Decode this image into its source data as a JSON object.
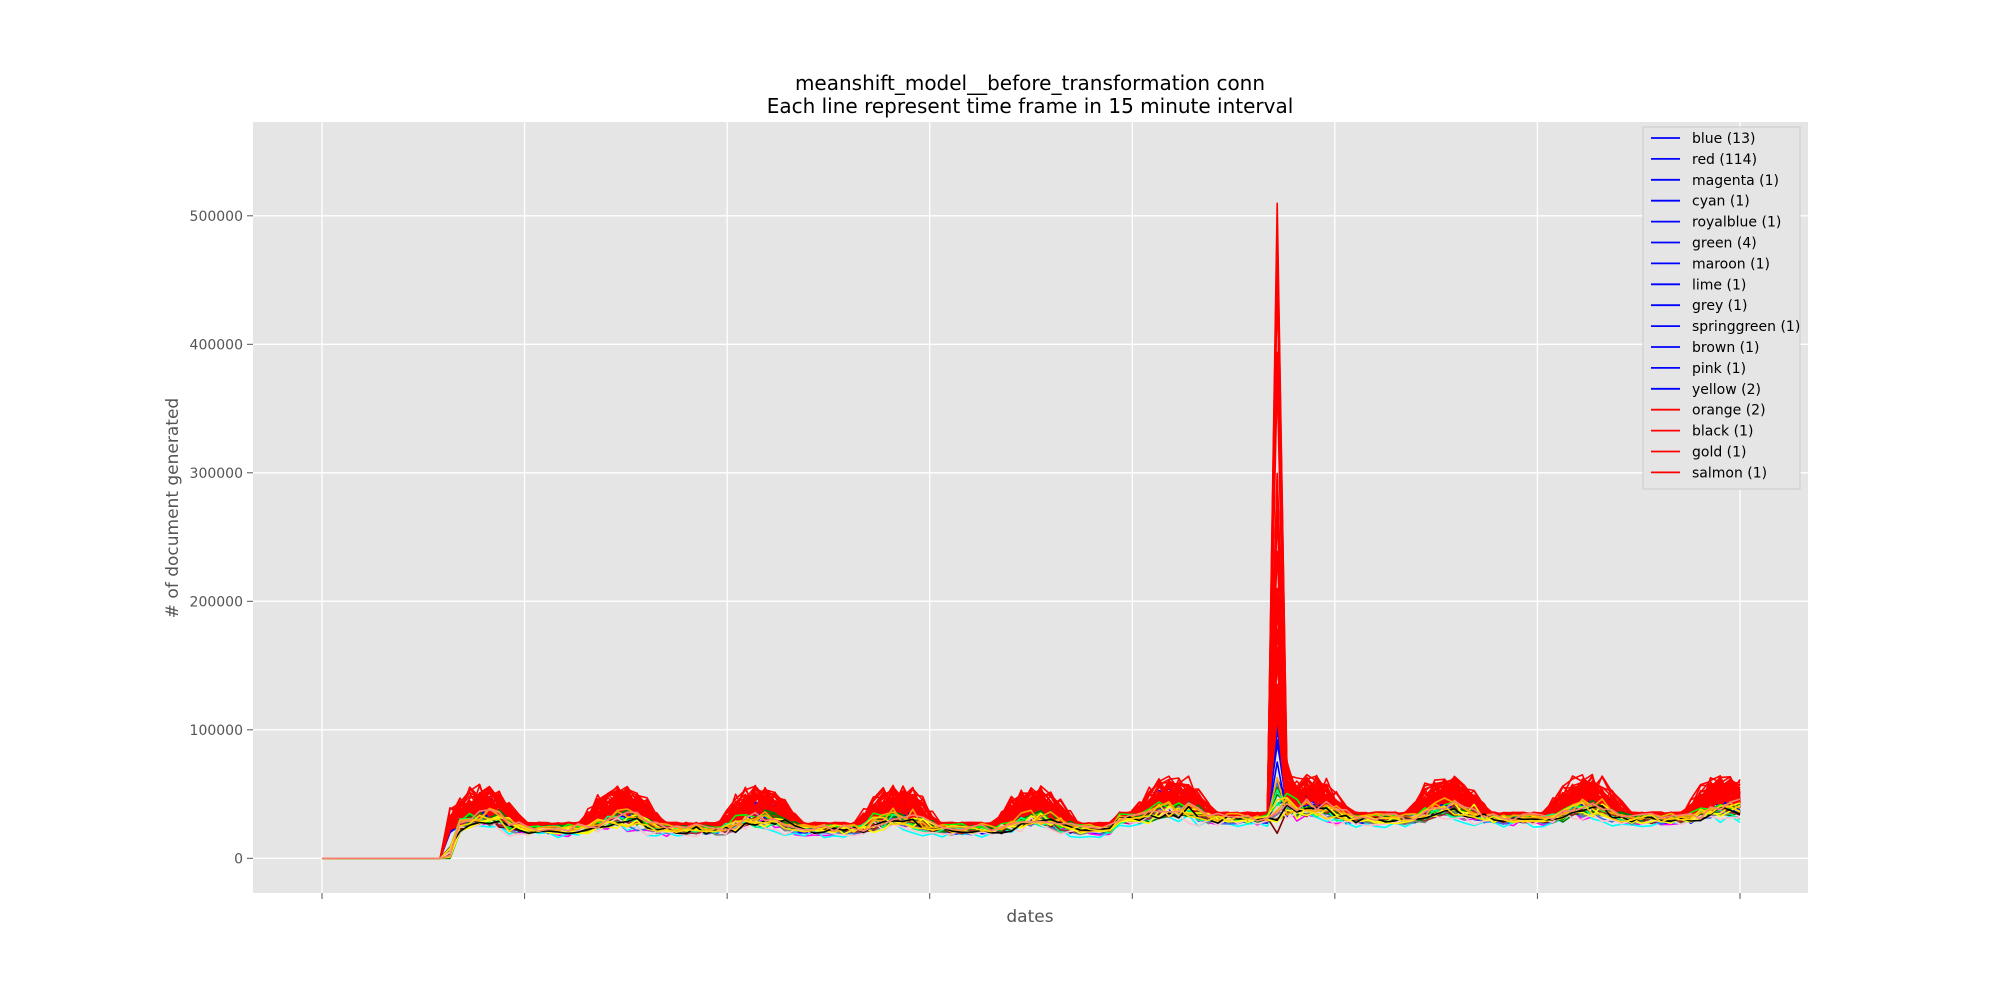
{
  "chart_data": {
    "type": "line",
    "title": "meanshift_model__before_transformation conn",
    "subtitle": "Each line represent time frame in 15 minute interval",
    "xlabel": "dates",
    "ylabel": "# of document generated",
    "ylim": [
      -27000,
      573000
    ],
    "yticks": [
      0,
      100000,
      200000,
      300000,
      400000,
      500000
    ],
    "x_tick_count": 8,
    "x_points": 145,
    "grid": true,
    "background": "#e5e5e5",
    "legend_position": "top-right",
    "legend": [
      {
        "label": "blue (13)",
        "color": "#0000ff"
      },
      {
        "label": "red (114)",
        "color": "#0000ff"
      },
      {
        "label": "magenta (1)",
        "color": "#0000ff"
      },
      {
        "label": "cyan (1)",
        "color": "#0000ff"
      },
      {
        "label": "royalblue (1)",
        "color": "#0000ff"
      },
      {
        "label": "green (4)",
        "color": "#0000ff"
      },
      {
        "label": "maroon (1)",
        "color": "#0000ff"
      },
      {
        "label": "lime (1)",
        "color": "#0000ff"
      },
      {
        "label": "grey (1)",
        "color": "#0000ff"
      },
      {
        "label": "springgreen (1)",
        "color": "#0000ff"
      },
      {
        "label": "brown (1)",
        "color": "#0000ff"
      },
      {
        "label": "pink (1)",
        "color": "#0000ff"
      },
      {
        "label": "yellow (2)",
        "color": "#0000ff"
      },
      {
        "label": "orange (2)",
        "color": "#ff0000"
      },
      {
        "label": "black (1)",
        "color": "#ff0000"
      },
      {
        "label": "gold (1)",
        "color": "#ff0000"
      },
      {
        "label": "salmon (1)",
        "color": "#ff0000"
      }
    ],
    "series_groups": [
      {
        "color": "#ff0000",
        "count": 114,
        "baseline": 25000,
        "amplitude": 22000,
        "spike": 547000
      },
      {
        "color": "#0000ff",
        "count": 13,
        "baseline": 22000,
        "amplitude": 18000,
        "spike": 120000
      },
      {
        "color": "#ff00ff",
        "count": 1,
        "baseline": 20000,
        "amplitude": 8000,
        "spike": 60000
      },
      {
        "color": "#00ffff",
        "count": 1,
        "baseline": 19000,
        "amplitude": 7000,
        "spike": 50000
      },
      {
        "color": "#4169e1",
        "count": 1,
        "baseline": 21000,
        "amplitude": 8000,
        "spike": 60000
      },
      {
        "color": "#008000",
        "count": 4,
        "baseline": 23000,
        "amplitude": 9000,
        "spike": 70000
      },
      {
        "color": "#800000",
        "count": 1,
        "baseline": 22000,
        "amplitude": 8000,
        "spike": 60000
      },
      {
        "color": "#00ff00",
        "count": 1,
        "baseline": 24000,
        "amplitude": 10000,
        "spike": 75000
      },
      {
        "color": "#808080",
        "count": 1,
        "baseline": 21000,
        "amplitude": 7000,
        "spike": 55000
      },
      {
        "color": "#00ff7f",
        "count": 1,
        "baseline": 22000,
        "amplitude": 8000,
        "spike": 55000
      },
      {
        "color": "#a52a2a",
        "count": 1,
        "baseline": 22000,
        "amplitude": 8000,
        "spike": 55000
      },
      {
        "color": "#ffc0cb",
        "count": 1,
        "baseline": 20000,
        "amplitude": 7000,
        "spike": 50000
      },
      {
        "color": "#ffff00",
        "count": 2,
        "baseline": 22000,
        "amplitude": 9000,
        "spike": 60000
      },
      {
        "color": "#ffa500",
        "count": 2,
        "baseline": 24000,
        "amplitude": 10000,
        "spike": 70000
      },
      {
        "color": "#000000",
        "count": 1,
        "baseline": 22000,
        "amplitude": 8000,
        "spike": 60000
      },
      {
        "color": "#ffd700",
        "count": 1,
        "baseline": 23000,
        "amplitude": 9000,
        "spike": 65000
      },
      {
        "color": "#fa8072",
        "count": 1,
        "baseline": 24000,
        "amplitude": 10000,
        "spike": 70000
      }
    ]
  }
}
